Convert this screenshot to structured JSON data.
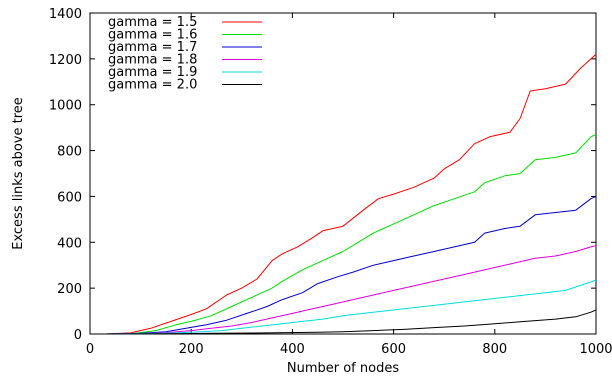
{
  "chart_data": {
    "type": "line",
    "title": "",
    "xlabel": "Number of nodes",
    "ylabel": "Excess links above tree",
    "xlim": [
      0,
      1000
    ],
    "ylim": [
      0,
      1400
    ],
    "xticks": [
      0,
      200,
      400,
      600,
      800,
      1000
    ],
    "yticks": [
      0,
      200,
      400,
      600,
      800,
      1000,
      1200,
      1400
    ],
    "grid": false,
    "legend_position": "top-left",
    "series": [
      {
        "name": "gamma = 1.5",
        "color": "#ff0000",
        "points": [
          [
            30,
            0
          ],
          [
            80,
            5
          ],
          [
            120,
            25
          ],
          [
            160,
            55
          ],
          [
            200,
            85
          ],
          [
            230,
            110
          ],
          [
            270,
            170
          ],
          [
            300,
            200
          ],
          [
            330,
            240
          ],
          [
            360,
            320
          ],
          [
            380,
            350
          ],
          [
            410,
            380
          ],
          [
            440,
            420
          ],
          [
            460,
            450
          ],
          [
            500,
            470
          ],
          [
            540,
            540
          ],
          [
            570,
            590
          ],
          [
            600,
            610
          ],
          [
            640,
            640
          ],
          [
            680,
            680
          ],
          [
            700,
            720
          ],
          [
            730,
            760
          ],
          [
            760,
            830
          ],
          [
            790,
            860
          ],
          [
            830,
            880
          ],
          [
            850,
            940
          ],
          [
            870,
            1060
          ],
          [
            900,
            1070
          ],
          [
            940,
            1090
          ],
          [
            970,
            1160
          ],
          [
            990,
            1200
          ],
          [
            1000,
            1220
          ]
        ]
      },
      {
        "name": "gamma = 1.6",
        "color": "#00dd00",
        "points": [
          [
            30,
            0
          ],
          [
            90,
            3
          ],
          [
            130,
            15
          ],
          [
            170,
            40
          ],
          [
            200,
            55
          ],
          [
            240,
            80
          ],
          [
            280,
            120
          ],
          [
            320,
            160
          ],
          [
            360,
            200
          ],
          [
            380,
            230
          ],
          [
            420,
            280
          ],
          [
            460,
            320
          ],
          [
            500,
            360
          ],
          [
            530,
            400
          ],
          [
            560,
            440
          ],
          [
            600,
            480
          ],
          [
            640,
            520
          ],
          [
            680,
            560
          ],
          [
            720,
            590
          ],
          [
            760,
            620
          ],
          [
            780,
            660
          ],
          [
            820,
            690
          ],
          [
            850,
            700
          ],
          [
            880,
            760
          ],
          [
            920,
            770
          ],
          [
            960,
            790
          ],
          [
            990,
            860
          ],
          [
            1000,
            870
          ]
        ]
      },
      {
        "name": "gamma = 1.7",
        "color": "#0000cc",
        "points": [
          [
            30,
            0
          ],
          [
            100,
            3
          ],
          [
            150,
            10
          ],
          [
            190,
            25
          ],
          [
            230,
            40
          ],
          [
            270,
            60
          ],
          [
            310,
            90
          ],
          [
            350,
            120
          ],
          [
            380,
            150
          ],
          [
            420,
            180
          ],
          [
            450,
            220
          ],
          [
            490,
            250
          ],
          [
            520,
            270
          ],
          [
            560,
            300
          ],
          [
            600,
            320
          ],
          [
            640,
            340
          ],
          [
            680,
            360
          ],
          [
            720,
            380
          ],
          [
            760,
            400
          ],
          [
            780,
            440
          ],
          [
            820,
            460
          ],
          [
            850,
            470
          ],
          [
            880,
            520
          ],
          [
            920,
            530
          ],
          [
            960,
            540
          ],
          [
            990,
            590
          ],
          [
            1000,
            600
          ]
        ]
      },
      {
        "name": "gamma = 1.8",
        "color": "#dd00dd",
        "points": [
          [
            30,
            0
          ],
          [
            110,
            2
          ],
          [
            160,
            8
          ],
          [
            200,
            15
          ],
          [
            240,
            25
          ],
          [
            280,
            35
          ],
          [
            320,
            50
          ],
          [
            360,
            70
          ],
          [
            400,
            90
          ],
          [
            440,
            110
          ],
          [
            480,
            130
          ],
          [
            520,
            150
          ],
          [
            560,
            170
          ],
          [
            600,
            190
          ],
          [
            640,
            210
          ],
          [
            680,
            230
          ],
          [
            720,
            250
          ],
          [
            760,
            270
          ],
          [
            800,
            290
          ],
          [
            840,
            310
          ],
          [
            880,
            330
          ],
          [
            920,
            340
          ],
          [
            960,
            360
          ],
          [
            990,
            380
          ],
          [
            1000,
            385
          ]
        ]
      },
      {
        "name": "gamma = 1.9",
        "color": "#00dddd",
        "points": [
          [
            30,
            0
          ],
          [
            120,
            2
          ],
          [
            170,
            5
          ],
          [
            220,
            10
          ],
          [
            260,
            15
          ],
          [
            300,
            25
          ],
          [
            340,
            35
          ],
          [
            380,
            45
          ],
          [
            420,
            55
          ],
          [
            460,
            65
          ],
          [
            500,
            80
          ],
          [
            540,
            90
          ],
          [
            580,
            100
          ],
          [
            620,
            110
          ],
          [
            660,
            120
          ],
          [
            700,
            130
          ],
          [
            740,
            140
          ],
          [
            780,
            150
          ],
          [
            820,
            160
          ],
          [
            860,
            170
          ],
          [
            900,
            180
          ],
          [
            940,
            190
          ],
          [
            980,
            220
          ],
          [
            1000,
            235
          ]
        ]
      },
      {
        "name": "gamma = 2.0",
        "color": "#000000",
        "points": [
          [
            30,
            0
          ],
          [
            150,
            1
          ],
          [
            250,
            3
          ],
          [
            350,
            5
          ],
          [
            450,
            8
          ],
          [
            500,
            10
          ],
          [
            560,
            15
          ],
          [
            620,
            20
          ],
          [
            680,
            28
          ],
          [
            740,
            35
          ],
          [
            800,
            45
          ],
          [
            860,
            55
          ],
          [
            920,
            65
          ],
          [
            960,
            75
          ],
          [
            990,
            95
          ],
          [
            1000,
            105
          ]
        ]
      }
    ]
  }
}
